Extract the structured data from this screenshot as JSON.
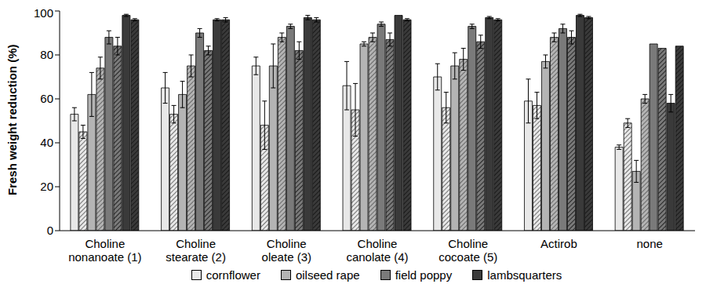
{
  "chart_data": {
    "type": "bar",
    "y_label": "Fresh weight reduction (%)",
    "categories": [
      "Choline\nnonanoate (1)",
      "Choline\nstearate (2)",
      "Choline\noleate (3)",
      "Choline\ncanolate (4)",
      "Choline\ncocoate (5)",
      "Actirob",
      "none"
    ],
    "ylim": [
      0,
      100
    ],
    "yticks": [
      0,
      20,
      40,
      60,
      80,
      100
    ],
    "grid": false,
    "legend": "bottom",
    "series": [
      {
        "name": "cornflower",
        "color": "#e8e8e8",
        "values": [
          53,
          65,
          75,
          66,
          70,
          59,
          38
        ],
        "errors": [
          3,
          7,
          4,
          11,
          6,
          10,
          1
        ],
        "hatched_values": [
          45,
          53,
          48,
          55,
          56,
          57,
          49
        ],
        "hatched_errors": [
          3,
          4,
          11,
          12,
          7,
          6,
          2
        ]
      },
      {
        "name": "oilseed rape",
        "color": "#b4b4b4",
        "values": [
          62,
          62,
          75,
          85,
          75,
          77,
          27
        ],
        "errors": [
          10,
          6,
          10,
          1,
          6,
          3,
          5
        ],
        "hatched_values": [
          74,
          75,
          88,
          88,
          78,
          88,
          60
        ],
        "hatched_errors": [
          5,
          5,
          2,
          2,
          5,
          2,
          2
        ]
      },
      {
        "name": "field poppy",
        "color": "#7a7a7a",
        "values": [
          88,
          90,
          93,
          94,
          93,
          92,
          85
        ],
        "errors": [
          3,
          2,
          1,
          1,
          1,
          2,
          0
        ],
        "hatched_values": [
          84,
          82,
          82,
          87,
          86,
          88,
          83
        ],
        "hatched_errors": [
          4,
          2,
          4,
          3,
          3,
          3,
          0
        ]
      },
      {
        "name": "lambsquarters",
        "color": "#3a3a3a",
        "values": [
          98,
          96,
          97,
          98,
          97,
          98,
          58
        ],
        "errors": [
          0.5,
          0.5,
          1,
          0,
          0.5,
          0.5,
          4
        ],
        "hatched_values": [
          96,
          96,
          96,
          96,
          96,
          97,
          84
        ],
        "hatched_errors": [
          0.5,
          1,
          1,
          0.5,
          0.5,
          0.5,
          0
        ]
      }
    ]
  }
}
